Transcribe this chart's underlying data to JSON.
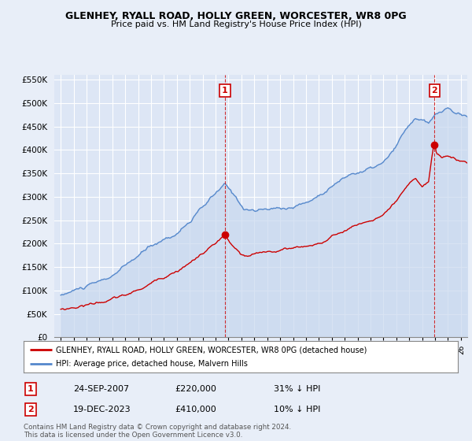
{
  "title": "GLENHEY, RYALL ROAD, HOLLY GREEN, WORCESTER, WR8 0PG",
  "subtitle": "Price paid vs. HM Land Registry's House Price Index (HPI)",
  "legend_red": "GLENHEY, RYALL ROAD, HOLLY GREEN, WORCESTER, WR8 0PG (detached house)",
  "legend_blue": "HPI: Average price, detached house, Malvern Hills",
  "annotation1_date": "24-SEP-2007",
  "annotation1_price": "£220,000",
  "annotation1_hpi": "31% ↓ HPI",
  "annotation2_date": "19-DEC-2023",
  "annotation2_price": "£410,000",
  "annotation2_hpi": "10% ↓ HPI",
  "footer": "Contains HM Land Registry data © Crown copyright and database right 2024.\nThis data is licensed under the Open Government Licence v3.0.",
  "ylim": [
    0,
    560000
  ],
  "yticks": [
    0,
    50000,
    100000,
    150000,
    200000,
    250000,
    300000,
    350000,
    400000,
    450000,
    500000,
    550000
  ],
  "ytick_labels": [
    "£0",
    "£50K",
    "£100K",
    "£150K",
    "£200K",
    "£250K",
    "£300K",
    "£350K",
    "£400K",
    "£450K",
    "£500K",
    "£550K"
  ],
  "xmin": 1994.5,
  "xmax": 2026.5,
  "sale1_x": 2007.73,
  "sale1_y": 220000,
  "sale2_x": 2023.96,
  "sale2_y": 410000,
  "vline1_x": 2007.73,
  "vline2_x": 2023.96,
  "background_color": "#e8eef8",
  "plot_bg_color": "#dde6f5",
  "grid_color": "#ffffff",
  "red_color": "#cc0000",
  "blue_color": "#5588cc",
  "blue_fill": "#c8d8ef"
}
